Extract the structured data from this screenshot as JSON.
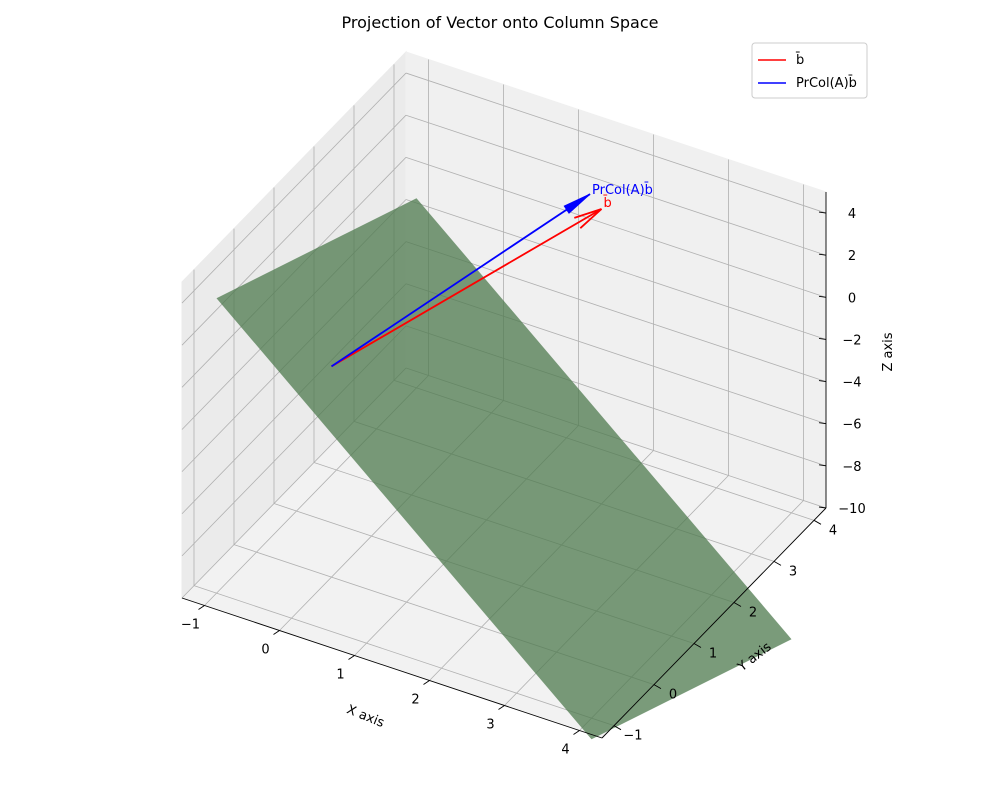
{
  "chart_data": {
    "type": "3d-surface-vectors",
    "title": "Projection of Vector onto Column Space",
    "xlabel": "X axis",
    "ylabel": "Y axis",
    "zlabel": "Z axis",
    "xlim": [
      -1.3,
      4.3
    ],
    "ylim": [
      -1.3,
      4.3
    ],
    "zlim": [
      -10,
      5
    ],
    "x_ticks": [
      -1,
      0,
      1,
      2,
      3,
      4
    ],
    "y_ticks": [
      -1,
      0,
      1,
      2,
      3,
      4
    ],
    "z_ticks": [
      -10,
      -8,
      -6,
      -4,
      -2,
      0,
      2,
      4
    ],
    "grid": true,
    "legend_placement": "top-right",
    "legend": [
      {
        "label": "b̄",
        "color": "#ff0000"
      },
      {
        "label": "PrCol(A)b̄",
        "color": "#0000ff"
      }
    ],
    "plane": {
      "color": "#4e7a4e",
      "opacity": 0.75,
      "corners": [
        {
          "x": -1,
          "y": -1,
          "z": 4
        },
        {
          "x": 4,
          "y": -1,
          "z": -11
        },
        {
          "x": 4,
          "y": 4,
          "z": -16
        },
        {
          "x": -1,
          "y": 4,
          "z": -1
        }
      ]
    },
    "vectors": [
      {
        "name": "b̄",
        "color": "#ff0000",
        "start": [
          0,
          0,
          0
        ],
        "end": [
          2,
          3,
          4
        ],
        "label": "b̄"
      },
      {
        "name": "PrCol(A)b̄",
        "color": "#0000ff",
        "start": [
          0,
          0,
          0
        ],
        "end": [
          1.67,
          3.33,
          3.67
        ],
        "label": "PrCol(A)b̄"
      }
    ]
  }
}
